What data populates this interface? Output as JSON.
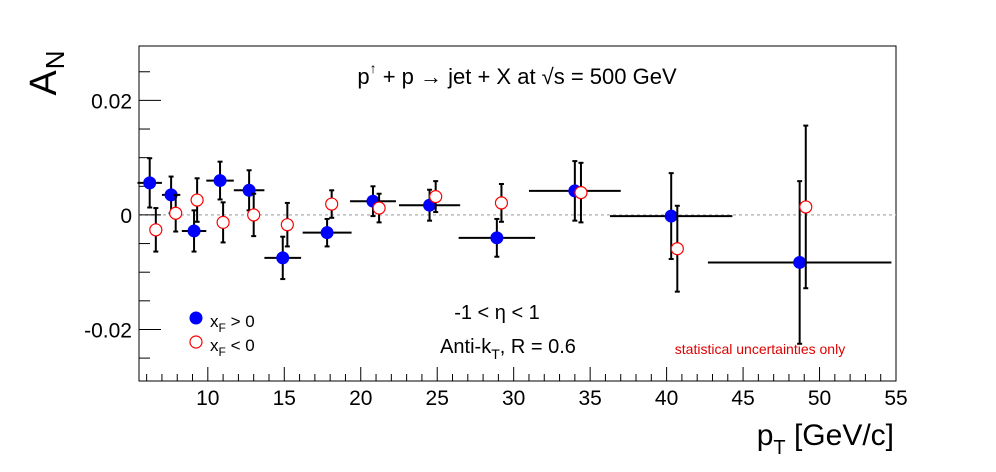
{
  "chart_data": {
    "type": "scatter",
    "title": "p↑ + p → jet + X at √s = 500 GeV",
    "xlabel": "p_T [GeV/c]",
    "ylabel": "A_N",
    "xlim": [
      5.5,
      55
    ],
    "ylim": [
      -0.029,
      0.0295
    ],
    "xticks": [
      10,
      15,
      20,
      25,
      30,
      35,
      40,
      45,
      50,
      55
    ],
    "xtick_labels": [
      "10",
      "15",
      "20",
      "25",
      "30",
      "35",
      "40",
      "45",
      "50",
      "55"
    ],
    "yticks": [
      -0.02,
      0,
      0.02
    ],
    "ytick_labels": [
      "-0.02",
      "0",
      "0.02"
    ],
    "grid": false,
    "zero_line": true,
    "legend_position": "bottom-left",
    "annotations": [
      "-1 < η < 1",
      "Anti-k_T, R = 0.6",
      "statistical uncertainties only"
    ],
    "colors": {
      "xf_pos": "#0000ff",
      "xf_neg": "#ff0000",
      "note": "#e00000",
      "zero_line": "#bbbbbb"
    },
    "series": [
      {
        "name": "x_F > 0",
        "marker": "filled-circle",
        "points": [
          {
            "x": 6.2,
            "y": 0.0056,
            "xerr": 0.8,
            "yerr": 0.0043
          },
          {
            "x": 7.6,
            "y": 0.0035,
            "xerr": 0.6,
            "yerr": 0.0032
          },
          {
            "x": 9.1,
            "y": -0.0028,
            "xerr": 0.8,
            "yerr": 0.0036
          },
          {
            "x": 10.8,
            "y": 0.006,
            "xerr": 0.9,
            "yerr": 0.0033
          },
          {
            "x": 12.7,
            "y": 0.0043,
            "xerr": 1.0,
            "yerr": 0.0035
          },
          {
            "x": 14.9,
            "y": -0.0075,
            "xerr": 1.2,
            "yerr": 0.0037
          },
          {
            "x": 17.8,
            "y": -0.0031,
            "xerr": 1.6,
            "yerr": 0.0024
          },
          {
            "x": 20.8,
            "y": 0.0024,
            "xerr": 1.5,
            "yerr": 0.0026
          },
          {
            "x": 24.5,
            "y": 0.0017,
            "xerr": 2.0,
            "yerr": 0.0027
          },
          {
            "x": 28.9,
            "y": -0.004,
            "xerr": 2.5,
            "yerr": 0.0033
          },
          {
            "x": 34.0,
            "y": 0.0042,
            "xerr": 3.0,
            "yerr": 0.0052
          },
          {
            "x": 40.3,
            "y": -0.0002,
            "xerr": 4.0,
            "yerr": 0.0075
          },
          {
            "x": 48.7,
            "y": -0.0083,
            "xerr": 6.0,
            "yerr": 0.0142
          }
        ]
      },
      {
        "name": "x_F < 0",
        "marker": "open-circle",
        "points": [
          {
            "x": 6.6,
            "y": -0.0026,
            "yerr": 0.0038
          },
          {
            "x": 7.9,
            "y": 0.0003,
            "yerr": 0.0032
          },
          {
            "x": 9.3,
            "y": 0.0026,
            "yerr": 0.0038
          },
          {
            "x": 11.0,
            "y": -0.0013,
            "yerr": 0.0035
          },
          {
            "x": 13.0,
            "y": 0.0,
            "yerr": 0.0037
          },
          {
            "x": 15.2,
            "y": -0.0017,
            "yerr": 0.0038
          },
          {
            "x": 18.1,
            "y": 0.0019,
            "yerr": 0.0024
          },
          {
            "x": 21.2,
            "y": 0.0012,
            "yerr": 0.0025
          },
          {
            "x": 24.9,
            "y": 0.0032,
            "yerr": 0.0027
          },
          {
            "x": 29.2,
            "y": 0.0021,
            "yerr": 0.0033
          },
          {
            "x": 34.4,
            "y": 0.0039,
            "yerr": 0.0052
          },
          {
            "x": 40.7,
            "y": -0.0059,
            "yerr": 0.0075
          },
          {
            "x": 49.1,
            "y": 0.0014,
            "yerr": 0.0142
          }
        ]
      }
    ]
  }
}
